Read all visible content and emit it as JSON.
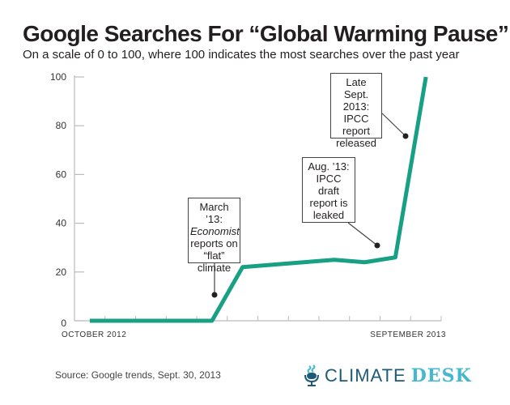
{
  "title": "Google Searches For “Global Warming Pause”",
  "subtitle": "On a scale of 0 to 100, where 100 indicates the most searches over the past year",
  "source": "Source: Google trends, Sept. 30, 2013",
  "logo": {
    "word1": "CLIMATE",
    "word2": "DESK",
    "icon": "microphone-icon",
    "color1": "#1d5a78",
    "color2": "#43b8cf"
  },
  "chart_data": {
    "type": "line",
    "title": "Google Searches For “Global Warming Pause”",
    "x_tick_labels": [
      "October 2012",
      "September 2013"
    ],
    "y_ticks": [
      "0",
      "20",
      "40",
      "60",
      "80",
      "100"
    ],
    "ylim": [
      0,
      100
    ],
    "grid": false,
    "x": [
      "Oct 2012",
      "Nov 2012",
      "Dec 2012",
      "Jan 2013",
      "Feb 2013",
      "Mar 2013",
      "Apr 2013",
      "May 2013",
      "Jun 2013",
      "Jul 2013",
      "Aug 2013",
      "Sep 2013"
    ],
    "values": [
      0,
      0,
      0,
      0,
      0,
      22,
      23,
      24,
      25,
      24,
      26,
      100
    ],
    "line_color": "#17a083",
    "annotations": [
      {
        "lines": [
          "March ’13:",
          "Economist",
          "reports on",
          "“flat”",
          "climate"
        ],
        "italic_line": 1
      },
      {
        "lines": [
          "Aug. ’13:",
          "IPCC draft",
          "report is",
          "leaked"
        ]
      },
      {
        "lines": [
          "Late",
          "Sept. 2013:",
          "IPCC",
          "report",
          "released"
        ]
      }
    ]
  }
}
